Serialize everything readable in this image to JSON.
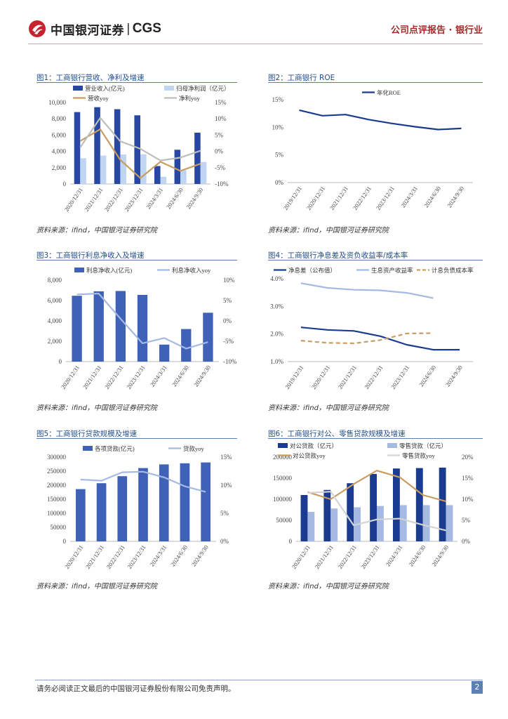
{
  "header": {
    "brand": "中国银河证券",
    "brand_abbr": "CGS",
    "report_type": "公司点评报告 · 银行业"
  },
  "footer": {
    "disclaimer": "请务必阅读正文最后的中国银河证券股份有限公司免责声明。",
    "page": "2"
  },
  "colors": {
    "navy": "#2747a3",
    "light_blue": "#bfd5f2",
    "gold": "#c79d62",
    "grey": "#bdbdbd",
    "dark_navy": "#1a3b8f",
    "mid_blue": "#3f61b8",
    "pale_blue": "#9fb6e4",
    "pale_blue2": "#a5b9e3"
  },
  "figures": [
    {
      "title": "图1：工商银行营收、净利及增速",
      "source": "资料来源：ifind，中国银河证券研究院"
    },
    {
      "title": "图2：工商银行 ROE",
      "source": "资料来源：ifind，中国银河证券研究院"
    },
    {
      "title": "图3：工商银行利息净收入及增速",
      "source": "资料来源：ifind，中国银河证券研究院"
    },
    {
      "title": "图4：工商银行净息差及资负收益率/成本率",
      "source": "资料来源：ifind，中国银河证券研究院"
    },
    {
      "title": "图5：工商银行贷款规模及增速",
      "source": "资料来源：ifind，中国银河证券研究院"
    },
    {
      "title": "图6：工商银行对公、零售贷款规模及增速",
      "source": "资料来源：ifind，中国银河证券研究院"
    }
  ],
  "chart_data": [
    {
      "id": "fig1",
      "type": "bar",
      "categories": [
        "2020/12/31",
        "2021/12/31",
        "2022/12/31",
        "2023/12/31",
        "2024/3/31",
        "2024/6/30",
        "2024/9/30"
      ],
      "series": [
        {
          "name": "营业收入(亿元)",
          "kind": "bar",
          "axis": "left",
          "color": "#2747a3",
          "values": [
            8827,
            9428,
            9180,
            8430,
            2200,
            4200,
            6300
          ]
        },
        {
          "name": "归母净利润（亿元）",
          "kind": "bar",
          "axis": "left",
          "color": "#bfd5f2",
          "values": [
            3159,
            3483,
            3610,
            3640,
            880,
            1700,
            2700
          ]
        },
        {
          "name": "营收yoy",
          "kind": "line",
          "axis": "right",
          "color": "#c79d62",
          "values": [
            3.2,
            6.8,
            -2.6,
            -8.2,
            -3.2,
            -6.0,
            -3.8
          ]
        },
        {
          "name": "净利yoy",
          "kind": "line",
          "axis": "right",
          "color": "#bdbdbd",
          "values": [
            1.2,
            10.3,
            3.1,
            0.8,
            -2.8,
            -1.9,
            0.2
          ]
        }
      ],
      "left_axis": {
        "min": 0,
        "max": 10000,
        "ticks": [
          "0",
          "2,000",
          "4,000",
          "6,000",
          "8,000",
          "10,000"
        ]
      },
      "right_axis": {
        "min": -10,
        "max": 15,
        "ticks": [
          "-10%",
          "-5%",
          "0%",
          "5%",
          "10%",
          "15%"
        ]
      }
    },
    {
      "id": "fig2",
      "type": "line",
      "categories": [
        "2019/12/31",
        "2020/12/31",
        "2021/12/31",
        "2022/12/31",
        "2023/12/31",
        "2024/3/31",
        "2024/6/30",
        "2024/9/30"
      ],
      "series": [
        {
          "name": "年化ROE",
          "kind": "line",
          "axis": "left",
          "color": "#1a3b8f",
          "values": [
            13.1,
            12.1,
            12.3,
            11.4,
            10.7,
            10.1,
            9.6,
            9.8
          ]
        }
      ],
      "left_axis": {
        "min": 0,
        "max": 15,
        "ticks": [
          "0%",
          "5%",
          "10%",
          "15%"
        ]
      }
    },
    {
      "id": "fig3",
      "type": "bar",
      "categories": [
        "2020/12/31",
        "2021/12/31",
        "2022/12/31",
        "2023/12/31",
        "2024/3/31",
        "2024/6/30",
        "2024/9/30"
      ],
      "series": [
        {
          "name": "利息净收入(亿元)",
          "kind": "bar",
          "axis": "left",
          "color": "#3f61b8",
          "values": [
            6468,
            6904,
            6937,
            6554,
            1670,
            3200,
            4800
          ]
        },
        {
          "name": "利息净收入yoy",
          "kind": "line",
          "axis": "right",
          "color": "#a5b9e3",
          "values": [
            6.5,
            6.7,
            0.5,
            -5.5,
            -4.2,
            -6.8,
            -5.2
          ]
        }
      ],
      "left_axis": {
        "min": 0,
        "max": 8000,
        "ticks": [
          "0",
          "2,000",
          "4,000",
          "6,000",
          "8,000"
        ]
      },
      "right_axis": {
        "min": -10,
        "max": 10,
        "ticks": [
          "-10%",
          "-5%",
          "0%",
          "5%",
          "10%"
        ]
      }
    },
    {
      "id": "fig4",
      "type": "line",
      "categories": [
        "2019/12/31",
        "2020/12/31",
        "2021/12/31",
        "2022/12/31",
        "2023/12/31",
        "2024/6/30",
        "2024/9/30"
      ],
      "series": [
        {
          "name": "净息差（公布值）",
          "kind": "line",
          "axis": "left",
          "color": "#1a3b8f",
          "dash": false,
          "values": [
            2.24,
            2.15,
            2.11,
            1.92,
            1.61,
            1.43,
            1.43
          ]
        },
        {
          "name": "生息资产收益率",
          "kind": "line",
          "axis": "left",
          "color": "#a5b9e3",
          "dash": false,
          "values": [
            3.84,
            3.67,
            3.6,
            3.58,
            3.49,
            3.3,
            null
          ]
        },
        {
          "name": "计息负债成本率",
          "kind": "line",
          "axis": "left",
          "color": "#c79d62",
          "dash": true,
          "values": [
            1.76,
            1.68,
            1.66,
            1.78,
            2.02,
            2.03,
            null
          ]
        }
      ],
      "left_axis": {
        "min": 1,
        "max": 4,
        "ticks": [
          "1.0%",
          "2.0%",
          "3.0%",
          "4.0%"
        ]
      }
    },
    {
      "id": "fig5",
      "type": "bar",
      "categories": [
        "2020/12/31",
        "2021/12/31",
        "2022/12/31",
        "2023/12/31",
        "2024/3/31",
        "2024/6/30",
        "2024/9/30"
      ],
      "series": [
        {
          "name": "各项贷款(亿元)",
          "kind": "bar",
          "axis": "left",
          "color": "#3f61b8",
          "values": [
            186000,
            207000,
            232000,
            261000,
            274000,
            278000,
            281000
          ]
        },
        {
          "name": "贷款yoy",
          "kind": "line",
          "axis": "right",
          "color": "#a5b9e3",
          "values": [
            11.0,
            10.8,
            12.3,
            12.4,
            11.4,
            9.8,
            8.8
          ]
        }
      ],
      "left_axis": {
        "min": 0,
        "max": 300000,
        "ticks": [
          "0",
          "50000",
          "100000",
          "150000",
          "200000",
          "250000",
          "300000"
        ]
      },
      "right_axis": {
        "min": 0,
        "max": 15,
        "ticks": [
          "0%",
          "5%",
          "10%",
          "15%"
        ]
      }
    },
    {
      "id": "fig6",
      "type": "bar",
      "categories": [
        "2020/12/31",
        "2021/12/31",
        "2022/12/31",
        "2023/12/31",
        "2024/3/31",
        "2024/6/30",
        "2024/9/30"
      ],
      "series": [
        {
          "name": "对公贷款（亿元）",
          "kind": "bar",
          "axis": "left",
          "color": "#1a3b8f",
          "values": [
            110000,
            122000,
            138000,
            160000,
            173000,
            174000,
            175000
          ]
        },
        {
          "name": "零售贷款（亿元）",
          "kind": "bar",
          "axis": "left",
          "color": "#a5b9e3",
          "values": [
            70000,
            78000,
            81000,
            84000,
            86000,
            86000,
            86000
          ]
        },
        {
          "name": "对公贷款yoy",
          "kind": "line",
          "axis": "right",
          "color": "#c79d62",
          "values": [
            11.7,
            10.0,
            13.6,
            16.8,
            15.2,
            11.0,
            9.5
          ]
        },
        {
          "name": "零售贷款yoy",
          "kind": "line",
          "axis": "right",
          "color": "#d3d3d3",
          "values": [
            11.5,
            11.8,
            3.8,
            5.2,
            5.4,
            3.9,
            2.6
          ]
        }
      ],
      "left_axis": {
        "min": 0,
        "max": 200000,
        "ticks": [
          "0",
          "50000",
          "100000",
          "150000",
          "200000"
        ]
      },
      "right_axis": {
        "min": 0,
        "max": 20,
        "ticks": [
          "0%",
          "5%",
          "10%",
          "15%",
          "20%"
        ]
      }
    }
  ]
}
